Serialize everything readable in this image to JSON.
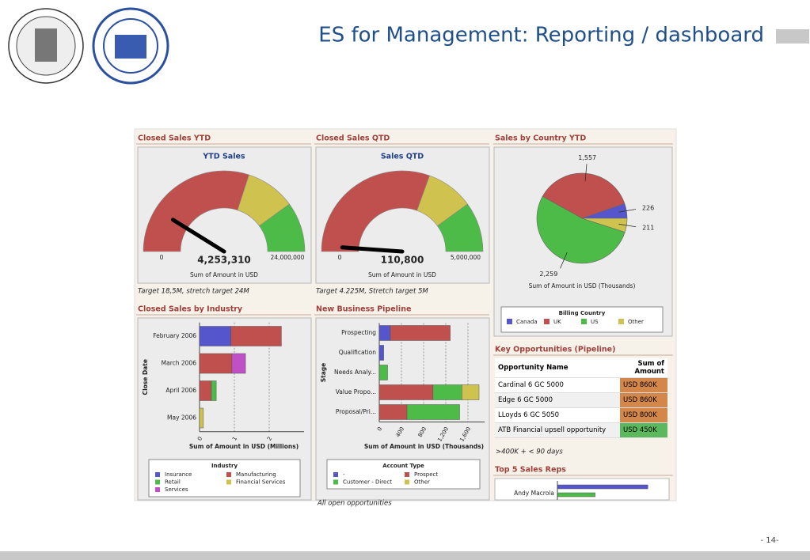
{
  "slide": {
    "title": "ES for Management: Reporting / dashboard",
    "page_number": "- 14-"
  },
  "dashboard": {
    "gauges": [
      {
        "panel_title": "Closed Sales YTD",
        "title": "YTD Sales",
        "value": 4253310,
        "value_label": "4,253,310",
        "min": 0,
        "max": 24000000,
        "max_label": "24,000,000",
        "bands": [
          {
            "to": 14400000,
            "color": "#c0504d"
          },
          {
            "to": 19200000,
            "color": "#cfc24f"
          },
          {
            "to": 24000000,
            "color": "#4cbb47"
          }
        ],
        "axis_label": "Sum of Amount in USD",
        "note": "Target 18,5M, stretch target 24M"
      },
      {
        "panel_title": "Closed Sales QTD",
        "title": "Sales QTD",
        "value": 110800,
        "value_label": "110,800",
        "min": 0,
        "max": 5000000,
        "max_label": "5,000,000",
        "bands": [
          {
            "to": 3050000,
            "color": "#c0504d"
          },
          {
            "to": 4000000,
            "color": "#cfc24f"
          },
          {
            "to": 5000000,
            "color": "#4cbb47"
          }
        ],
        "axis_label": "Sum of Amount in USD",
        "note": "Target 4.225M, Stretch target 5M"
      }
    ],
    "pie": {
      "panel_title": "Sales by Country YTD",
      "type": "pie",
      "categories": [
        "Canada",
        "UK",
        "US",
        "Other"
      ],
      "values": [
        226,
        1557,
        2259,
        211
      ],
      "value_labels": [
        "226",
        "1,557",
        "2,259",
        "211"
      ],
      "colors": [
        "#5555cc",
        "#c0504d",
        "#4cbb47",
        "#cfc24f"
      ],
      "axis_label": "Sum of Amount in USD (Thousands)",
      "legend_title": "Billing Country"
    },
    "industry": {
      "panel_title": "Closed Sales by Industry",
      "type": "bar",
      "orientation": "horizontal",
      "stacked": true,
      "categories": [
        "February 2006",
        "March 2006",
        "April 2006",
        "May 2006"
      ],
      "series": [
        {
          "name": "Insurance",
          "color": "#5555cc",
          "values": [
            0.9,
            null,
            null,
            null
          ]
        },
        {
          "name": "Manufacturing",
          "color": "#c0504d",
          "values": [
            1.45,
            0.93,
            0.34,
            null
          ]
        },
        {
          "name": "Retail",
          "color": "#4cbb47",
          "values": [
            null,
            null,
            0.14,
            null
          ]
        },
        {
          "name": "Financial Services",
          "color": "#cfc24f",
          "values": [
            null,
            null,
            null,
            0.11
          ]
        },
        {
          "name": "Services",
          "color": "#c050c8",
          "values": [
            null,
            0.39,
            null,
            null
          ]
        }
      ],
      "xlim": [
        0,
        3
      ],
      "xticks": [
        0,
        1,
        2
      ],
      "xlabel": "Sum of Amount in USD (Millions)",
      "ylabel": "Close Date",
      "legend_title": "Industry"
    },
    "pipeline": {
      "panel_title": "New Business Pipeline",
      "type": "bar",
      "orientation": "horizontal",
      "stacked": true,
      "categories": [
        "Prospecting",
        "Qualification",
        "Needs Analy...",
        "Value Propo...",
        "Proposal/Pri..."
      ],
      "series": [
        {
          "name": "-",
          "color": "#5555cc",
          "values": [
            200,
            80,
            null,
            null,
            null
          ]
        },
        {
          "name": "Prospect",
          "color": "#c0504d",
          "values": [
            1080,
            null,
            null,
            970,
            500
          ]
        },
        {
          "name": "Customer - Direct",
          "color": "#4cbb47",
          "values": [
            null,
            null,
            150,
            520,
            950
          ]
        },
        {
          "name": "Other",
          "color": "#cfc24f",
          "values": [
            null,
            null,
            null,
            310,
            null
          ]
        }
      ],
      "xlim": [
        0,
        1900
      ],
      "xticks": [
        0,
        400,
        800,
        {
          "value": 1200,
          "label": "1,200"
        },
        {
          "value": 1600,
          "label": "1,600"
        }
      ],
      "xlabel": "Sum of Amount in USD (Thousands)",
      "ylabel": "Stage",
      "legend_title": "Account Type",
      "note": "All open opportunities"
    },
    "opportunities": {
      "panel_title": "Key Opportunities (Pipeline)",
      "columns": [
        "Opportunity Name",
        "Sum of Amount"
      ],
      "rows": [
        {
          "name": "Cardinal 6 GC 5000",
          "amount": "USD 860K",
          "color": "#d4874a"
        },
        {
          "name": "Edge 6 GC 5000",
          "amount": "USD 860K",
          "color": "#d4874a"
        },
        {
          "name": "LLoyds 6 GC 5050",
          "amount": "USD 800K",
          "color": "#d4874a"
        },
        {
          "name": "ATB Financial upsell opportunity",
          "amount": "USD 450K",
          "color": "#5cb85c"
        }
      ],
      "note": ">400K + < 90 days"
    },
    "top_reps": {
      "panel_title": "Top 5 Sales Reps",
      "type": "bar",
      "categories": [
        "Andy Macrola"
      ],
      "series": [
        {
          "color": "#5555cc",
          "values": [
            84
          ]
        },
        {
          "color": "#4cbb47",
          "values": [
            35
          ]
        }
      ],
      "xlim": [
        0,
        100
      ]
    }
  }
}
